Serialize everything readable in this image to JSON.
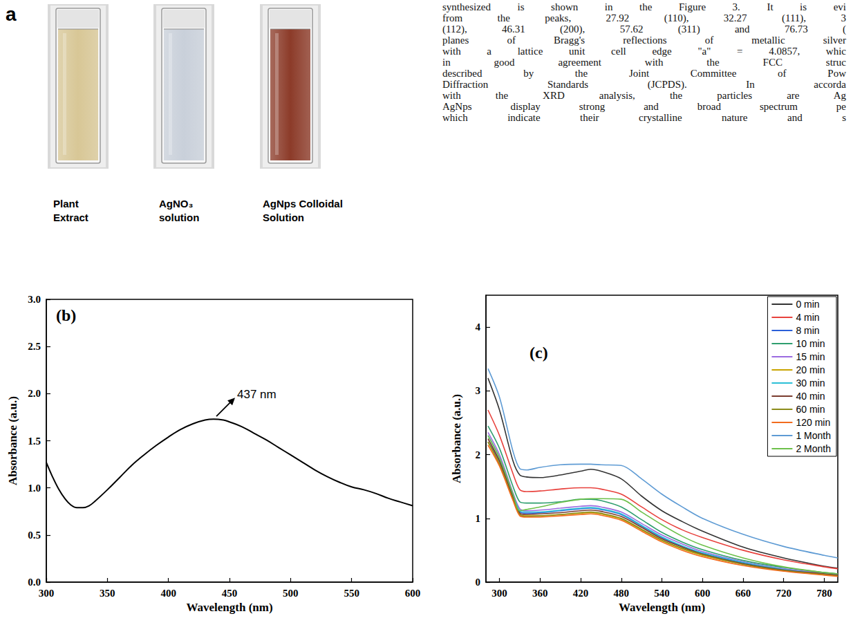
{
  "panel_a": {
    "letter": "a",
    "cuvettes": [
      {
        "label": [
          "Plant",
          "Extract"
        ],
        "color": "#d8c796"
      },
      {
        "label": [
          "AgNO₃",
          "solution"
        ],
        "color": "#c9d0da"
      },
      {
        "label": [
          "AgNps Colloidal",
          "Solution"
        ],
        "color": "#8c3b29"
      }
    ]
  },
  "text_lines": [
    "synthesized is shown in the Figure 3. It is evi",
    "from the peaks, 27.92 (110), 32.27 (111), 3",
    "(112), 46.31 (200), 57.62 (311) and 76.73 (",
    "planes of Bragg's reflections of metallic silver",
    "with a lattice unit cell edge \"a\" = 4.0857, whic",
    "in good agreement with the FCC struc",
    "described by the Joint Committee of Pow",
    "Diffraction Standards (JCPDS). In accorda",
    "with the XRD analysis, the particles are Ag",
    "AgNps display strong and broad spectrum pe",
    "which indicate their crystalline nature and s"
  ],
  "chart_data": [
    {
      "type": "line",
      "title": "(b)",
      "x_label": "Wavelength (nm)",
      "y_label": "Absorbance (a.u.)",
      "color": "#000000",
      "grid": false,
      "x": [
        300,
        305,
        310,
        315,
        320,
        325,
        330,
        335,
        340,
        350,
        360,
        370,
        380,
        390,
        400,
        410,
        420,
        430,
        437,
        445,
        450,
        460,
        470,
        480,
        490,
        500,
        510,
        520,
        530,
        540,
        550,
        560,
        570,
        580,
        590,
        600
      ],
      "values": [
        1.27,
        1.12,
        0.99,
        0.89,
        0.82,
        0.79,
        0.79,
        0.81,
        0.86,
        0.98,
        1.11,
        1.24,
        1.35,
        1.45,
        1.54,
        1.62,
        1.68,
        1.72,
        1.73,
        1.72,
        1.7,
        1.65,
        1.58,
        1.51,
        1.43,
        1.35,
        1.27,
        1.19,
        1.12,
        1.06,
        1.01,
        0.98,
        0.94,
        0.89,
        0.85,
        0.81
      ],
      "xlim": [
        300,
        600
      ],
      "xticks": [
        300,
        350,
        400,
        450,
        500,
        550,
        600
      ],
      "ylim": [
        0,
        3
      ],
      "yticks": [
        {
          "value": 0,
          "label": "0.0"
        },
        {
          "value": 0.5,
          "label": "0.5"
        },
        {
          "value": 1,
          "label": "1.0"
        },
        {
          "value": 1.5,
          "label": "1.5"
        },
        {
          "value": 2,
          "label": "2.0"
        },
        {
          "value": 2.5,
          "label": "2.5"
        },
        {
          "value": 3,
          "label": "3.0"
        }
      ],
      "annotations": [
        {
          "text": "437 nm",
          "x": 437,
          "y": 1.73
        }
      ]
    },
    {
      "type": "line",
      "title": "(c)",
      "x_label": "Wavelength (nm)",
      "y_label": "Absorbance (a.u.)",
      "grid": false,
      "legend": "top-right",
      "x": [
        283,
        300,
        320,
        330,
        340,
        360,
        390,
        420,
        435,
        450,
        480,
        510,
        540,
        570,
        600,
        660,
        720,
        780,
        800
      ],
      "series": [
        {
          "name": "0 min",
          "color": "#333333",
          "values": [
            3.2,
            2.7,
            1.9,
            1.68,
            1.65,
            1.64,
            1.68,
            1.74,
            1.77,
            1.74,
            1.62,
            1.35,
            1.12,
            0.95,
            0.8,
            0.55,
            0.38,
            0.25,
            0.22
          ]
        },
        {
          "name": "4 min",
          "color": "#e8413c",
          "values": [
            2.7,
            2.3,
            1.7,
            1.45,
            1.42,
            1.43,
            1.46,
            1.48,
            1.48,
            1.46,
            1.38,
            1.18,
            0.98,
            0.82,
            0.7,
            0.5,
            0.35,
            0.24,
            0.21
          ]
        },
        {
          "name": "8 min",
          "color": "#2a5fd8",
          "values": [
            2.2,
            1.9,
            1.35,
            1.1,
            1.08,
            1.09,
            1.12,
            1.15,
            1.16,
            1.14,
            1.06,
            0.88,
            0.7,
            0.56,
            0.45,
            0.3,
            0.2,
            0.13,
            0.11
          ]
        },
        {
          "name": "10 min",
          "color": "#2e9e6e",
          "values": [
            2.45,
            2.1,
            1.5,
            1.26,
            1.24,
            1.24,
            1.26,
            1.3,
            1.3,
            1.28,
            1.18,
            0.98,
            0.78,
            0.63,
            0.51,
            0.34,
            0.23,
            0.15,
            0.13
          ]
        },
        {
          "name": "15 min",
          "color": "#9b6be0",
          "values": [
            2.35,
            2.0,
            1.4,
            1.15,
            1.12,
            1.13,
            1.16,
            1.19,
            1.2,
            1.18,
            1.1,
            0.92,
            0.74,
            0.6,
            0.48,
            0.32,
            0.21,
            0.14,
            0.12
          ]
        },
        {
          "name": "20 min",
          "color": "#c9a400",
          "values": [
            2.2,
            1.85,
            1.3,
            1.06,
            1.04,
            1.04,
            1.06,
            1.08,
            1.09,
            1.07,
            0.99,
            0.82,
            0.65,
            0.52,
            0.42,
            0.28,
            0.18,
            0.12,
            0.1
          ]
        },
        {
          "name": "30 min",
          "color": "#2bbfd6",
          "values": [
            2.3,
            1.95,
            1.37,
            1.12,
            1.1,
            1.1,
            1.13,
            1.16,
            1.17,
            1.15,
            1.07,
            0.89,
            0.71,
            0.57,
            0.46,
            0.31,
            0.2,
            0.13,
            0.11
          ]
        },
        {
          "name": "40 min",
          "color": "#7a3b2e",
          "values": [
            2.25,
            1.9,
            1.33,
            1.08,
            1.06,
            1.07,
            1.09,
            1.12,
            1.13,
            1.11,
            1.03,
            0.86,
            0.68,
            0.55,
            0.44,
            0.29,
            0.19,
            0.13,
            0.11
          ]
        },
        {
          "name": "60 min",
          "color": "#8c8c1a",
          "values": [
            2.2,
            1.85,
            1.3,
            1.06,
            1.03,
            1.04,
            1.06,
            1.09,
            1.1,
            1.08,
            1.0,
            0.83,
            0.66,
            0.53,
            0.43,
            0.28,
            0.18,
            0.12,
            0.1
          ]
        },
        {
          "name": "120 min",
          "color": "#f26b1d",
          "values": [
            2.15,
            1.82,
            1.28,
            1.04,
            1.02,
            1.02,
            1.04,
            1.06,
            1.07,
            1.05,
            0.97,
            0.8,
            0.63,
            0.5,
            0.4,
            0.26,
            0.17,
            0.11,
            0.09
          ]
        },
        {
          "name": "1 Month",
          "color": "#5e9bd4",
          "values": [
            3.35,
            2.9,
            2.05,
            1.78,
            1.76,
            1.8,
            1.84,
            1.85,
            1.85,
            1.84,
            1.83,
            1.62,
            1.38,
            1.18,
            1.0,
            0.75,
            0.56,
            0.42,
            0.38
          ]
        },
        {
          "name": "2 Month",
          "color": "#6cc04a",
          "values": [
            2.3,
            1.95,
            1.38,
            1.12,
            1.14,
            1.18,
            1.25,
            1.3,
            1.31,
            1.31,
            1.3,
            1.1,
            0.9,
            0.72,
            0.58,
            0.38,
            0.24,
            0.15,
            0.13
          ]
        }
      ],
      "xlim": [
        280,
        800
      ],
      "xticks": [
        300,
        360,
        420,
        480,
        540,
        600,
        660,
        720,
        780
      ],
      "ylim": [
        0,
        4.5
      ],
      "yticks": [
        0,
        1,
        2,
        3,
        4
      ]
    }
  ]
}
